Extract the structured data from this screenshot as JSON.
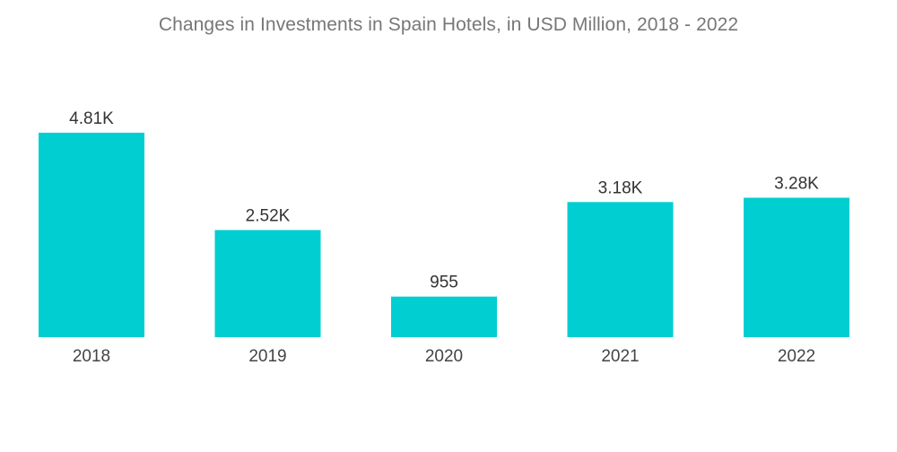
{
  "chart_data": {
    "type": "bar",
    "title": "Changes in Investments in Spain Hotels, in USD Million, 2018 - 2022",
    "xlabel": "",
    "ylabel": "",
    "categories": [
      "2018",
      "2019",
      "2020",
      "2021",
      "2022"
    ],
    "values": [
      4810,
      2520,
      955,
      3180,
      3280
    ],
    "data_labels": [
      "4.81K",
      "2.52K",
      "955",
      "3.18K",
      "3.28K"
    ],
    "ylim": [
      0,
      4810
    ],
    "grid": false,
    "legend": "none",
    "bar_color": "#00CED1"
  }
}
